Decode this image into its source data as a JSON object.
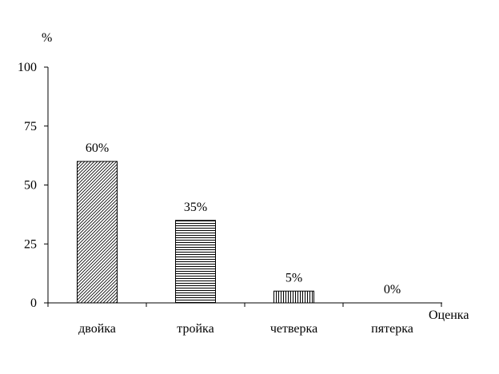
{
  "chart_data": {
    "type": "bar",
    "categories": [
      "двойка",
      "тройка",
      "четверка",
      "пятерка"
    ],
    "values": [
      60,
      35,
      5,
      0
    ],
    "data_labels": [
      "60%",
      "35%",
      "5%",
      "0%"
    ],
    "title": "",
    "xlabel": "Оценка",
    "ylabel": "%",
    "ylim": [
      0,
      100
    ],
    "yticks": [
      0,
      25,
      50,
      75,
      100
    ],
    "ytick_labels": [
      "0",
      "25",
      "50",
      "75",
      "100"
    ],
    "grid": false,
    "legend": "none",
    "bar_patterns": [
      "diagonal-hatch",
      "horizontal-lines",
      "vertical-lines",
      "none"
    ],
    "colors": {
      "stroke": "#000000",
      "background": "#ffffff"
    }
  }
}
